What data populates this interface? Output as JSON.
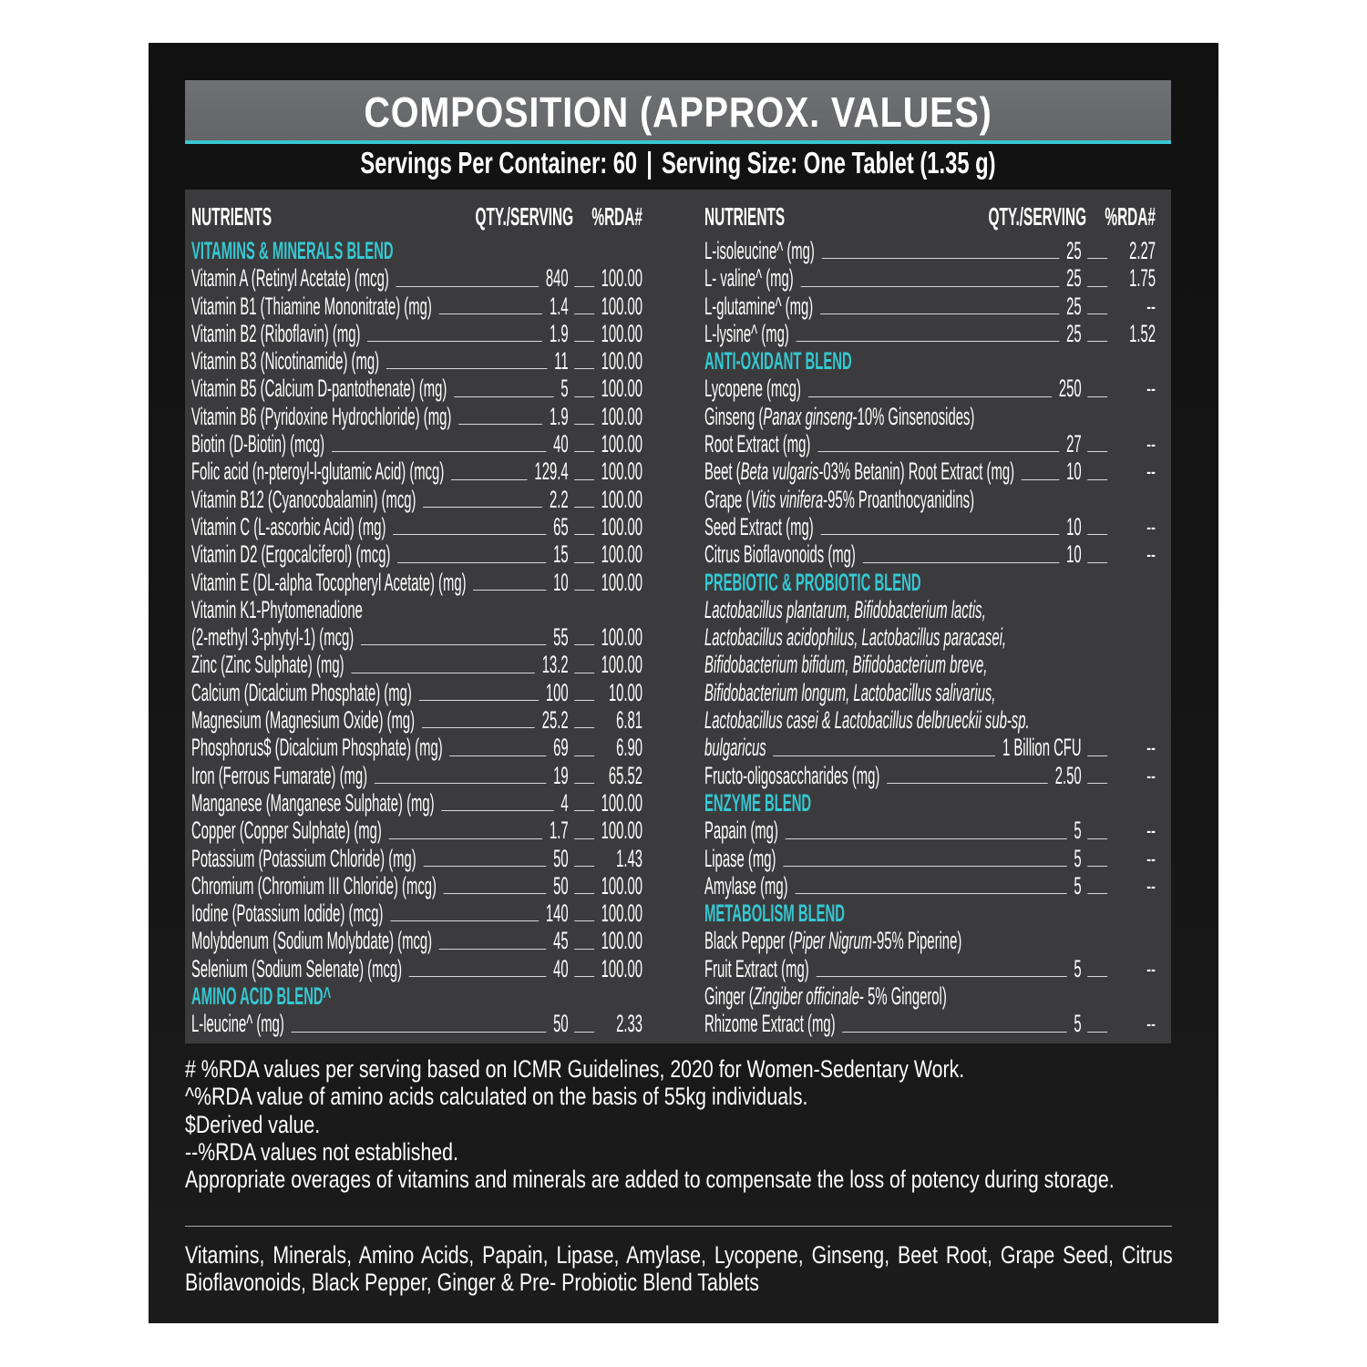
{
  "title": "COMPOSITION (APPROX. VALUES)",
  "serving": {
    "servings_per_container": "Servings Per Container: 60",
    "separator": "|",
    "serving_size": "Serving Size: One Tablet (1.35 g)"
  },
  "colors": {
    "accent": "#35c8d2",
    "table_bg": "#3b3b3d",
    "title_bg": "#6a6b6e",
    "panel_bg": "#141414"
  },
  "table_header": {
    "nutrients": "NUTRIENTS",
    "qty": "QTY./SERVING",
    "rda": "%RDA#"
  },
  "left_rows": [
    {
      "type": "heading",
      "name": "VITAMINS & MINERALS BLEND"
    },
    {
      "type": "item",
      "name": "Vitamin A (Retinyl Acetate) (mcg)",
      "qty": "840",
      "rda": "100.00"
    },
    {
      "type": "item",
      "name": "Vitamin B1 (Thiamine Mononitrate) (mg)",
      "qty": "1.4",
      "rda": "100.00"
    },
    {
      "type": "item",
      "name": "Vitamin B2 (Riboflavin) (mg)",
      "qty": "1.9",
      "rda": "100.00"
    },
    {
      "type": "item",
      "name": "Vitamin B3 (Nicotinamide) (mg)",
      "qty": "11",
      "rda": "100.00"
    },
    {
      "type": "item",
      "name": "Vitamin B5 (Calcium D-pantothenate) (mg)",
      "qty": "5",
      "rda": "100.00"
    },
    {
      "type": "item",
      "name": "Vitamin B6 (Pyridoxine Hydrochloride) (mg)",
      "qty": "1.9",
      "rda": "100.00"
    },
    {
      "type": "item",
      "name": "Biotin (D-Biotin) (mcg)",
      "qty": "40",
      "rda": "100.00"
    },
    {
      "type": "item",
      "name": "Folic acid (n-pteroyl-l-glutamic Acid) (mcg)",
      "qty": "129.4",
      "rda": "100.00"
    },
    {
      "type": "item",
      "name": "Vitamin B12 (Cyanocobalamin) (mcg)",
      "qty": "2.2",
      "rda": "100.00"
    },
    {
      "type": "item",
      "name": "Vitamin C (L-ascorbic Acid) (mg)",
      "qty": "65",
      "rda": "100.00"
    },
    {
      "type": "item",
      "name": "Vitamin D2 (Ergocalciferol) (mcg)",
      "qty": "15",
      "rda": "100.00"
    },
    {
      "type": "item",
      "name": "Vitamin E (DL-alpha Tocopheryl Acetate) (mg)",
      "qty": "10",
      "rda": "100.00"
    },
    {
      "type": "text",
      "name": "Vitamin K1-Phytomenadione"
    },
    {
      "type": "item",
      "name": "(2-methyl 3-phytyl-1) (mcg)",
      "qty": "55",
      "rda": "100.00"
    },
    {
      "type": "item",
      "name": "Zinc (Zinc Sulphate) (mg)",
      "qty": "13.2",
      "rda": "100.00"
    },
    {
      "type": "item",
      "name": "Calcium (Dicalcium Phosphate) (mg)",
      "qty": "100",
      "rda": "10.00"
    },
    {
      "type": "item",
      "name": "Magnesium (Magnesium Oxide) (mg)",
      "qty": "25.2",
      "rda": "6.81"
    },
    {
      "type": "item",
      "name": "Phosphorus$ (Dicalcium Phosphate) (mg)",
      "qty": "69",
      "rda": "6.90"
    },
    {
      "type": "item",
      "name": "Iron (Ferrous Fumarate) (mg)",
      "qty": "19",
      "rda": "65.52"
    },
    {
      "type": "item",
      "name": "Manganese (Manganese Sulphate) (mg)",
      "qty": "4",
      "rda": "100.00"
    },
    {
      "type": "item",
      "name": "Copper (Copper Sulphate) (mg)",
      "qty": "1.7",
      "rda": "100.00"
    },
    {
      "type": "item",
      "name": "Potassium (Potassium Chloride) (mg)",
      "qty": "50",
      "rda": "1.43"
    },
    {
      "type": "item",
      "name": "Chromium (Chromium III Chloride) (mcg)",
      "qty": "50",
      "rda": "100.00"
    },
    {
      "type": "item",
      "name": "Iodine (Potassium Iodide) (mcg)",
      "qty": "140",
      "rda": "100.00"
    },
    {
      "type": "item",
      "name": "Molybdenum (Sodium Molybdate) (mcg)",
      "qty": "45",
      "rda": "100.00"
    },
    {
      "type": "item",
      "name": "Selenium (Sodium Selenate) (mcg)",
      "qty": "40",
      "rda": "100.00"
    },
    {
      "type": "heading",
      "name": "AMINO ACID BLEND^"
    },
    {
      "type": "item",
      "name": "L-leucine^ (mg)",
      "qty": "50",
      "rda": "2.33"
    }
  ],
  "right_rows": [
    {
      "type": "item",
      "name": "L-isoleucine^ (mg)",
      "qty": "25",
      "rda": "2.27"
    },
    {
      "type": "item",
      "name": "L- valine^ (mg)",
      "qty": "25",
      "rda": "1.75"
    },
    {
      "type": "item",
      "name": "L-glutamine^ (mg)",
      "qty": "25",
      "rda": "--"
    },
    {
      "type": "item",
      "name": "L-lysine^ (mg)",
      "qty": "25",
      "rda": "1.52"
    },
    {
      "type": "heading",
      "name": "ANTI-OXIDANT BLEND"
    },
    {
      "type": "item",
      "name": "Lycopene (mcg)",
      "qty": "250",
      "rda": "--"
    },
    {
      "type": "text",
      "name": "Ginseng (",
      "italic": "Panax ginseng",
      "after": "-10% Ginsenosides)"
    },
    {
      "type": "item",
      "name": "Root Extract (mg)",
      "qty": "27",
      "rda": "--"
    },
    {
      "type": "item",
      "name": "Beet (",
      "italic": "Beta vulgaris",
      "after": "-03% Betanin) Root Extract (mg)",
      "qty": "10",
      "rda": "--"
    },
    {
      "type": "text",
      "name": "Grape (",
      "italic": "Vitis vinifera",
      "after": "-95% Proanthocyanidins)"
    },
    {
      "type": "item",
      "name": "Seed Extract (mg)",
      "qty": "10",
      "rda": "--"
    },
    {
      "type": "item",
      "name": "Citrus Bioflavonoids (mg)",
      "qty": "10",
      "rda": "--"
    },
    {
      "type": "heading",
      "name": "PREBIOTIC & PROBIOTIC BLEND"
    },
    {
      "type": "text",
      "italic": "Lactobacillus plantarum, Bifidobacterium lactis,"
    },
    {
      "type": "text",
      "italic": "Lactobacillus acidophilus, Lactobacillus paracasei,"
    },
    {
      "type": "text",
      "italic": "Bifidobacterium bifidum, Bifidobacterium breve,"
    },
    {
      "type": "text",
      "italic": "Bifidobacterium longum, Lactobacillus salivarius,"
    },
    {
      "type": "text",
      "italic": "Lactobacillus casei & Lactobacillus delbrueckii sub-sp."
    },
    {
      "type": "item",
      "italic": "bulgaricus",
      "qty": "1 Billion CFU",
      "rda": "--"
    },
    {
      "type": "item",
      "name": "Fructo-oligosaccharides (mg)",
      "qty": "2.50",
      "rda": "--"
    },
    {
      "type": "heading",
      "name": "ENZYME BLEND"
    },
    {
      "type": "item",
      "name": "Papain (mg)",
      "qty": "5",
      "rda": "--"
    },
    {
      "type": "item",
      "name": "Lipase (mg)",
      "qty": "5",
      "rda": "--"
    },
    {
      "type": "item",
      "name": "Amylase (mg)",
      "qty": "5",
      "rda": "--"
    },
    {
      "type": "heading",
      "name": "METABOLISM BLEND"
    },
    {
      "type": "text",
      "name": "Black Pepper (",
      "italic": "Piper Nigrum",
      "after": "-95% Piperine)"
    },
    {
      "type": "item",
      "name": "Fruit Extract (mg)",
      "qty": "5",
      "rda": "--"
    },
    {
      "type": "text",
      "name": "Ginger (",
      "italic": "Zingiber officinale",
      "after": "- 5% Gingerol)"
    },
    {
      "type": "item",
      "name": "Rhizome Extract (mg)",
      "qty": "5",
      "rda": "--"
    }
  ],
  "notes": [
    "# %RDA values per serving based on ICMR Guidelines, 2020 for Women-Sedentary Work.",
    "^%RDA value of amino acids calculated on the basis of 55kg individuals.",
    "$Derived value.",
    "--%RDA values not established.",
    "Appropriate overages of vitamins and minerals are added to compensate the loss of potency during storage."
  ],
  "ingredients": "Vitamins, Minerals, Amino Acids, Papain, Lipase, Amylase, Lycopene, Ginseng, Beet Root, Grape Seed, Citrus Bioflavonoids, Black Pepper, Ginger & Pre- Probiotic Blend Tablets"
}
